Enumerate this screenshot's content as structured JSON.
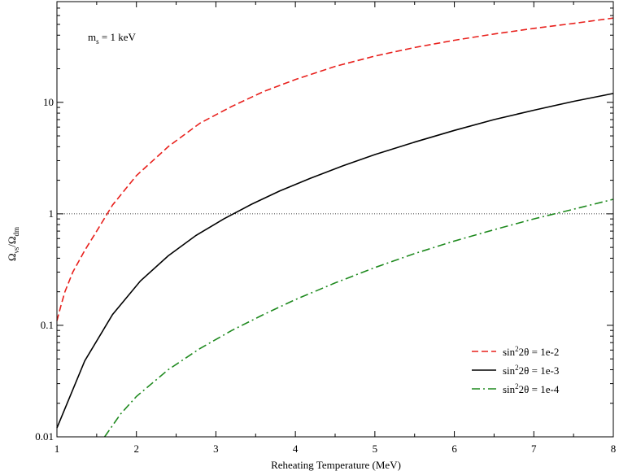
{
  "chart_data": {
    "type": "line",
    "xlabel": "Reheating Temperature (MeV)",
    "ylabel_main": "Ω",
    "ylabel_sub1": "νs",
    "ylabel_sep": "/Ω",
    "ylabel_sub2": "dm",
    "annotation_main": "m",
    "annotation_sub": "s",
    "annotation_rest": " = 1 keV",
    "xlim": [
      1,
      8
    ],
    "ylim": [
      0.01,
      80
    ],
    "yscale": "log",
    "x_ticks": [
      1,
      2,
      3,
      4,
      5,
      6,
      7,
      8
    ],
    "x_tick_labels": [
      "1",
      "2",
      "3",
      "4",
      "5",
      "6",
      "7",
      "8"
    ],
    "y_ticks": [
      0.01,
      0.1,
      1,
      10
    ],
    "y_tick_labels": [
      "0.01",
      "0.1",
      "1",
      "10"
    ],
    "reference_line": {
      "y": 1,
      "style": "dotted"
    },
    "legend_position": "bottom-right",
    "series": [
      {
        "label_prefix": "sin",
        "label_sup": "2",
        "label_rest": "2θ = 1e-2",
        "color": "#e8201c",
        "dash": "dashed",
        "x": [
          1.0,
          1.05,
          1.1,
          1.2,
          1.35,
          1.5,
          1.7,
          2.0,
          2.4,
          2.8,
          3.2,
          3.6,
          4.0,
          4.5,
          5.0,
          5.5,
          6.0,
          6.5,
          7.0,
          7.5,
          8.0
        ],
        "y": [
          0.11,
          0.15,
          0.2,
          0.3,
          0.47,
          0.7,
          1.2,
          2.2,
          4.0,
          6.5,
          9.2,
          12.5,
          16.0,
          21.0,
          26.0,
          31.0,
          36.0,
          41.0,
          46.0,
          51.0,
          57.0
        ]
      },
      {
        "label_prefix": "sin",
        "label_sup": "2",
        "label_rest": "2θ = 1e-3",
        "color": "#000000",
        "dash": "solid",
        "x": [
          1.0,
          1.35,
          1.7,
          2.05,
          2.4,
          2.75,
          3.1,
          3.45,
          3.8,
          4.2,
          4.6,
          5.0,
          5.5,
          6.0,
          6.5,
          7.0,
          7.5,
          8.0
        ],
        "y": [
          0.012,
          0.048,
          0.125,
          0.25,
          0.42,
          0.64,
          0.9,
          1.22,
          1.6,
          2.1,
          2.7,
          3.4,
          4.4,
          5.6,
          7.0,
          8.5,
          10.2,
          12.0
        ]
      },
      {
        "label_prefix": "sin",
        "label_sup": "2",
        "label_rest": "2θ = 1e-4",
        "color": "#1f8a1f",
        "dash": "dashdot",
        "x": [
          1.6,
          1.8,
          2.0,
          2.4,
          2.8,
          3.2,
          3.6,
          4.0,
          4.5,
          5.0,
          5.5,
          6.0,
          6.5,
          7.0,
          7.5,
          8.0
        ],
        "y": [
          0.01,
          0.016,
          0.023,
          0.04,
          0.062,
          0.09,
          0.125,
          0.17,
          0.24,
          0.33,
          0.44,
          0.57,
          0.72,
          0.9,
          1.1,
          1.35
        ]
      }
    ]
  }
}
